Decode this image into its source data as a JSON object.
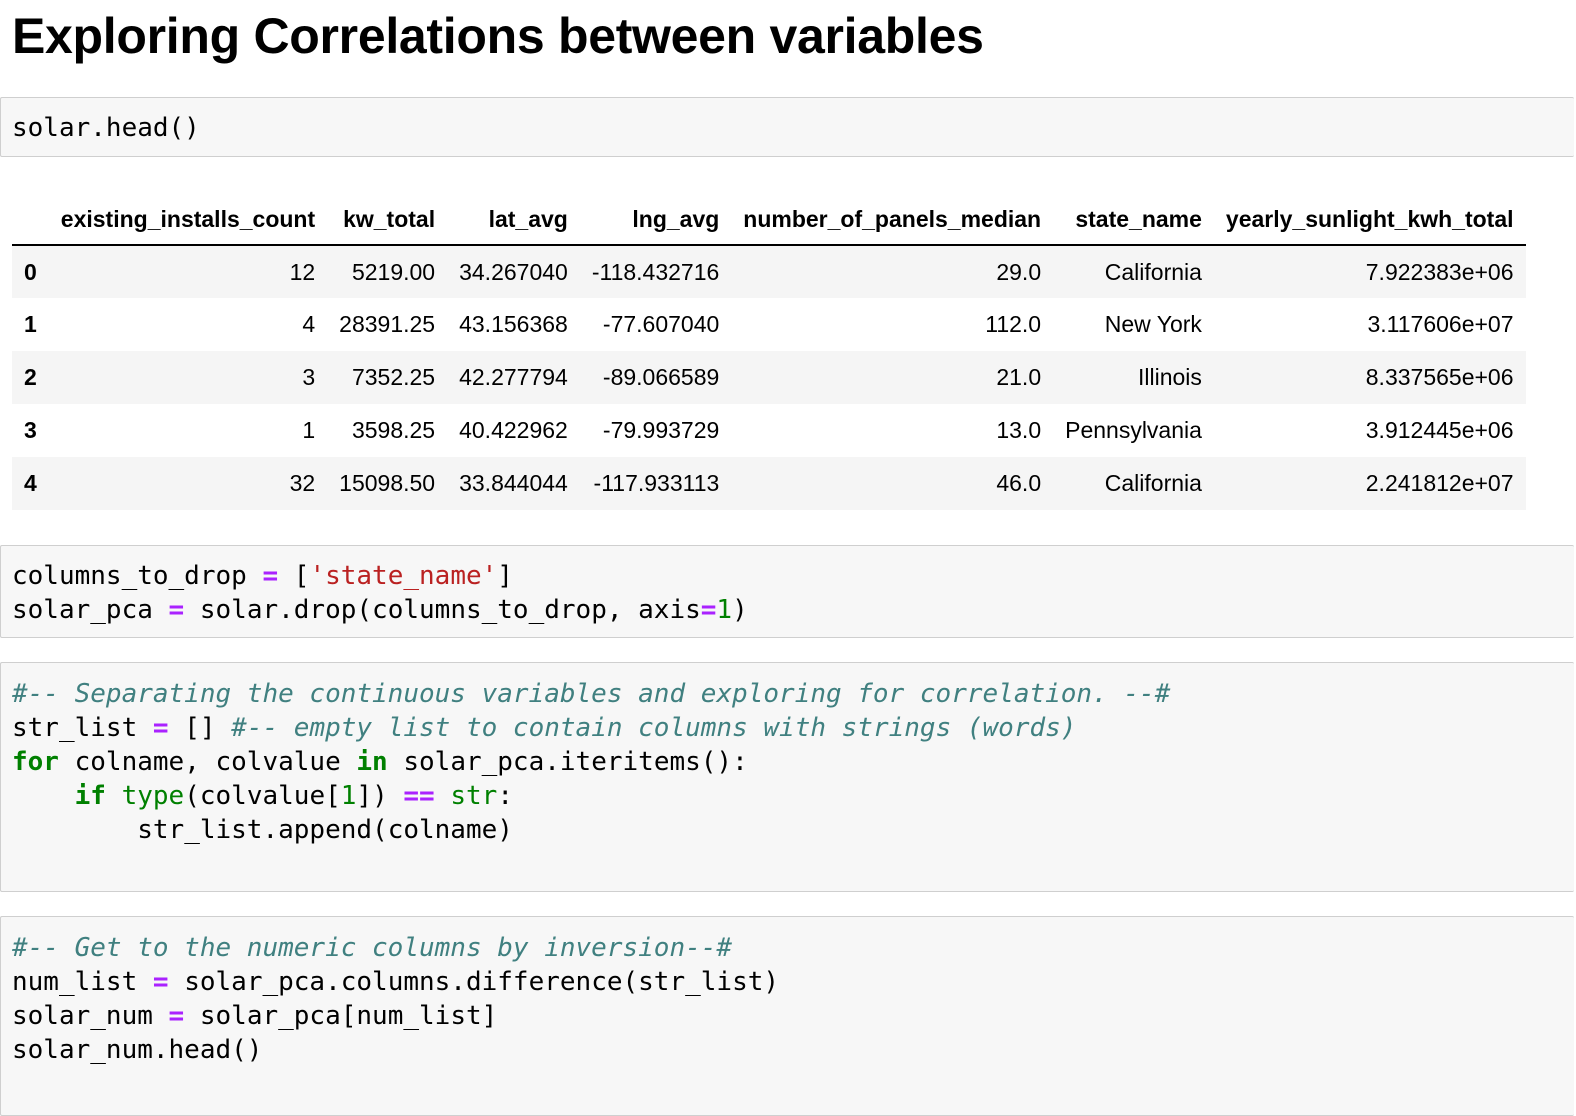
{
  "title": "Exploring Correlations between variables",
  "cell1": {
    "code": "solar.head()"
  },
  "dataframe": {
    "columns": [
      "",
      "existing_installs_count",
      "kw_total",
      "lat_avg",
      "lng_avg",
      "number_of_panels_median",
      "state_name",
      "yearly_sunlight_kwh_total"
    ],
    "rows": [
      [
        "0",
        "12",
        "5219.00",
        "34.267040",
        "-118.432716",
        "29.0",
        "California",
        "7.922383e+06"
      ],
      [
        "1",
        "4",
        "28391.25",
        "43.156368",
        "-77.607040",
        "112.0",
        "New York",
        "3.117606e+07"
      ],
      [
        "2",
        "3",
        "7352.25",
        "42.277794",
        "-89.066589",
        "21.0",
        "Illinois",
        "8.337565e+06"
      ],
      [
        "3",
        "1",
        "3598.25",
        "40.422962",
        "-79.993729",
        "13.0",
        "Pennsylvania",
        "3.912445e+06"
      ],
      [
        "4",
        "32",
        "15098.50",
        "33.844044",
        "-117.933113",
        "46.0",
        "California",
        "2.241812e+07"
      ]
    ]
  },
  "cell2": {
    "line1": {
      "var": "columns_to_drop",
      "op": "=",
      "lb": "[",
      "str": "'state_name'",
      "rb": "]"
    },
    "line2": {
      "var": "solar_pca",
      "op": "=",
      "call": "solar.drop(columns_to_drop, axis",
      "op2": "=",
      "num": "1",
      "end": ")"
    }
  },
  "cell3": {
    "comment1": "#-- Separating the continuous variables and exploring for correlation. --#",
    "line2_var": "str_list",
    "line2_op": "=",
    "line2_val": "[]",
    "line2_comment": "#-- empty list to contain columns with strings (words)",
    "line3_for": "for",
    "line3_mid": "colname, colvalue",
    "line3_in": "in",
    "line3_rest": "solar_pca.iteritems():",
    "line4_if": "if",
    "line4_type": "type",
    "line4_a": "(colvalue[",
    "line4_num": "1",
    "line4_b": "])",
    "line4_op": "==",
    "line4_str": "str",
    "line4_colon": ":",
    "line5": "str_list.append(colname)"
  },
  "cell4": {
    "comment1": "#-- Get to the numeric columns by inversion--#",
    "line2_var": "num_list",
    "line2_op": "=",
    "line2_rest": "solar_pca.columns.difference(str_list)",
    "line3_var": "solar_num",
    "line3_op": "=",
    "line3_rest": "solar_pca[num_list]",
    "line4": "solar_num.head()"
  }
}
